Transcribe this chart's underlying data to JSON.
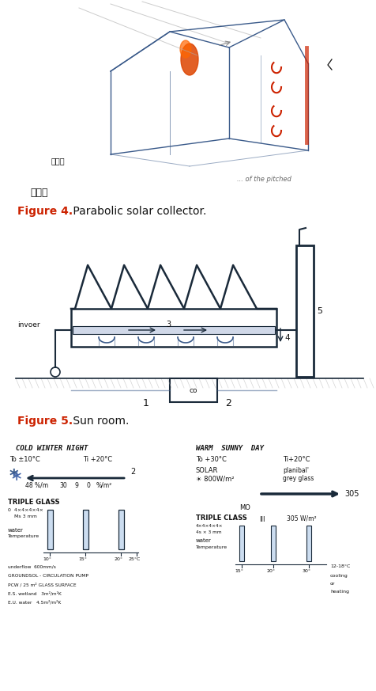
{
  "bg_color": "#ffffff",
  "fig_width": 4.77,
  "fig_height": 8.73,
  "dpi": 100,
  "chinese_label": "阳光房",
  "pitched_text": "... of the pitched",
  "fig4_bold": "Figure 4.",
  "fig4_color": "#cc2200",
  "fig4_text": " Parabolic solar collector.",
  "fig5_bold": "Figure 5.",
  "fig5_color": "#cc2200",
  "fig5_text": " Sun room.",
  "cold_title": "COLD WINTER NIGHT",
  "cold_to": "To ±10°C",
  "cold_ti": "Ti +20°C",
  "warm_title": "WARM  SUNNY  DAY",
  "warm_to": "To +30°C",
  "warm_ti": "Ti+20°C",
  "warm_solar": "SOLAR",
  "warm_solar_val": "☀ 800W/m²",
  "warm_planibal": "planibal'",
  "warm_grey": "grey glass",
  "warm_305": "305",
  "warm_mo": "MO",
  "warm_triple": "TRIPLE CLASS",
  "warm_iii": "III",
  "warm_305wm": "305 W/m²",
  "warm_12_18": "12-18°C",
  "warm_cool": "cooling",
  "warm_or": "or",
  "warm_heat": "heating",
  "lc": "#3a5a8a",
  "dc": "#1a2a3a",
  "rc": "#cc2200",
  "tc": "#111111",
  "gc": "#888888",
  "hatch_c": "#aaaaaa"
}
